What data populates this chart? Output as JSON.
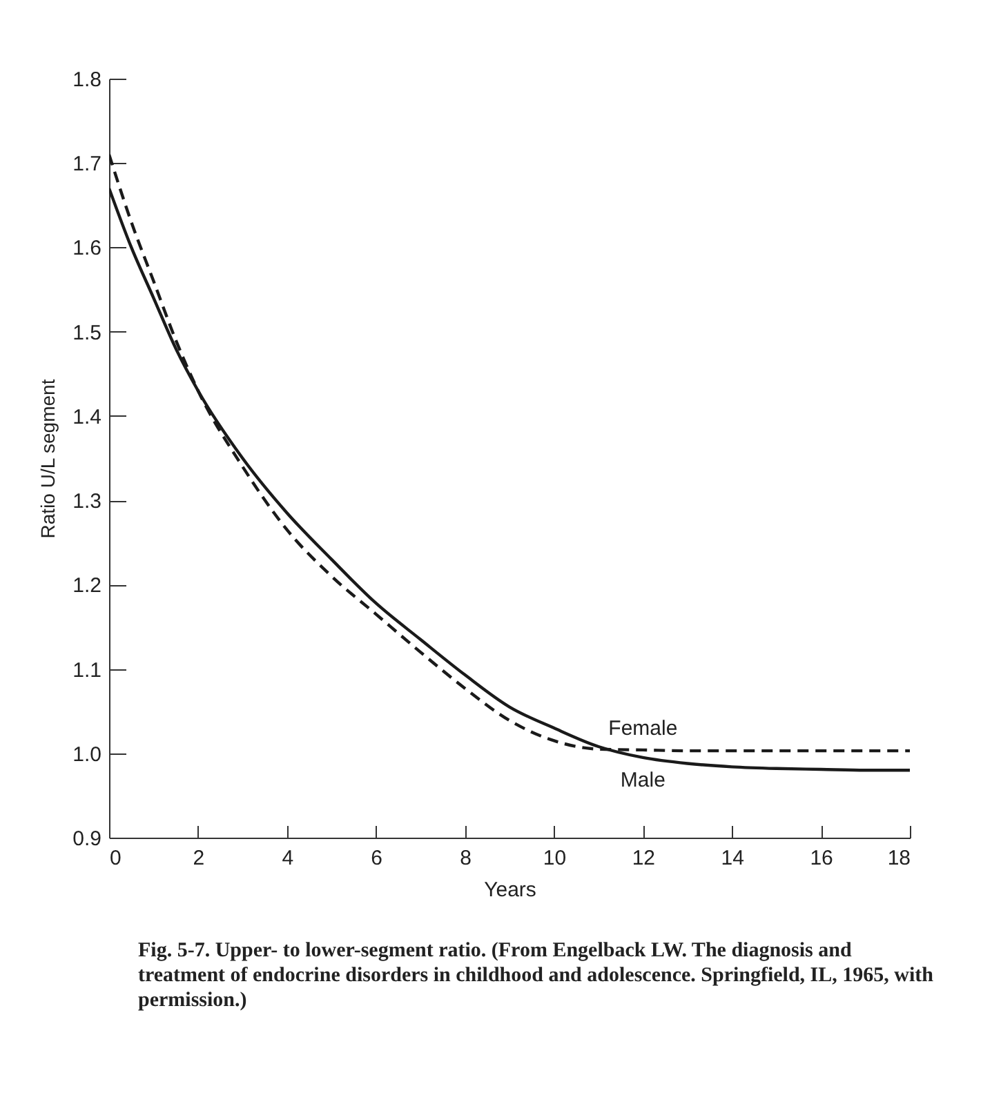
{
  "chart_data": {
    "type": "line",
    "xlabel": "Years",
    "ylabel": "Ratio U/L segment",
    "x": [
      0,
      0.5,
      1,
      1.5,
      2,
      3,
      4,
      5,
      6,
      7,
      8,
      9,
      10,
      11,
      12,
      13,
      14,
      15,
      16,
      17,
      18
    ],
    "series": [
      {
        "name": "Female",
        "color": "#1a1a1a",
        "line_style": "dashed",
        "values": [
          1.71,
          1.63,
          1.56,
          1.49,
          1.43,
          1.34,
          1.265,
          1.21,
          1.165,
          1.12,
          1.077,
          1.039,
          1.015,
          1.005,
          1.004,
          1.003,
          1.003,
          1.003,
          1.003,
          1.003,
          1.003
        ]
      },
      {
        "name": "Male",
        "color": "#1a1a1a",
        "line_style": "solid",
        "values": [
          1.67,
          1.6,
          1.54,
          1.48,
          1.43,
          1.35,
          1.285,
          1.23,
          1.178,
          1.135,
          1.093,
          1.055,
          1.03,
          1.008,
          0.995,
          0.988,
          0.984,
          0.982,
          0.981,
          0.98,
          0.98
        ]
      }
    ],
    "xlim": [
      0,
      18
    ],
    "xticks": [
      0,
      2,
      4,
      6,
      8,
      10,
      12,
      14,
      16,
      18
    ],
    "ylim": [
      0.9,
      1.8
    ],
    "yticks": [
      0.9,
      {
        "value": 1,
        "label": "1.0"
      },
      1.1,
      1.2,
      1.3,
      1.4,
      1.5,
      1.6,
      1.7,
      1.8
    ],
    "annotations": [
      "Fig. 5-7.    Upper- to lower-segment ratio. (From Engelback LW. The diagnosis and treatment of endocrine disorders in childhood and adolescence. Springfield, IL, 1965, with permission.)"
    ]
  }
}
